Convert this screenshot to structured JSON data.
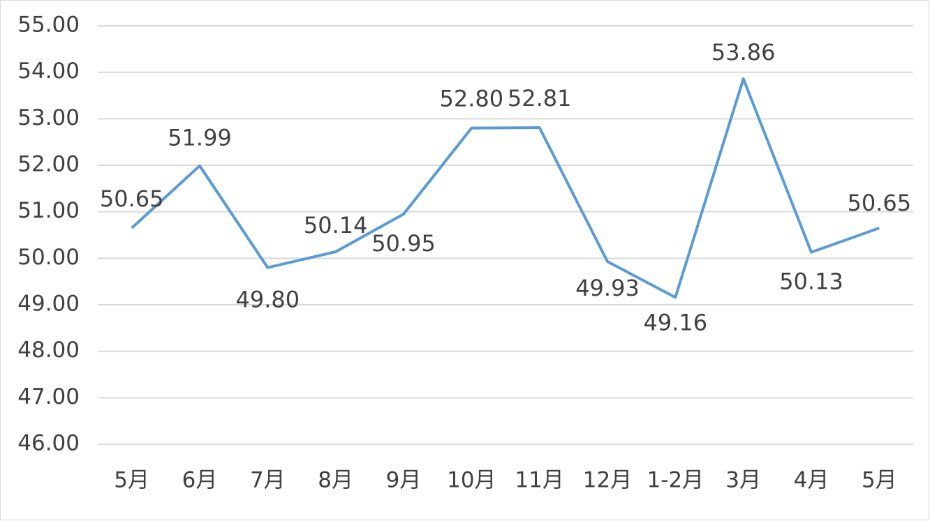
{
  "chart_data": {
    "type": "line",
    "categories": [
      "5月",
      "6月",
      "7月",
      "8月",
      "9月",
      "10月",
      "11月",
      "12月",
      "1-2月",
      "3月",
      "4月",
      "5月"
    ],
    "series": [
      {
        "color": "#5b9bd5",
        "values": [
          50.65,
          51.99,
          49.8,
          50.14,
          50.95,
          52.8,
          52.81,
          49.93,
          49.16,
          53.86,
          50.13,
          50.65
        ],
        "value_labels": [
          "50.65",
          "51.99",
          "49.80",
          "50.14",
          "50.95",
          "52.80",
          "52.81",
          "49.93",
          "49.16",
          "53.86",
          "50.13",
          "50.65"
        ]
      }
    ],
    "ylim": [
      46,
      55
    ],
    "yticks": [
      {
        "value": 46,
        "label": "46.00"
      },
      {
        "value": 47,
        "label": "47.00"
      },
      {
        "value": 48,
        "label": "48.00"
      },
      {
        "value": 49,
        "label": "49.00"
      },
      {
        "value": 50,
        "label": "50.00"
      },
      {
        "value": 51,
        "label": "51.00"
      },
      {
        "value": 52,
        "label": "52.00"
      },
      {
        "value": 53,
        "label": "53.00"
      },
      {
        "value": 54,
        "label": "54.00"
      },
      {
        "value": 55,
        "label": "55.00"
      }
    ],
    "grid": true
  }
}
